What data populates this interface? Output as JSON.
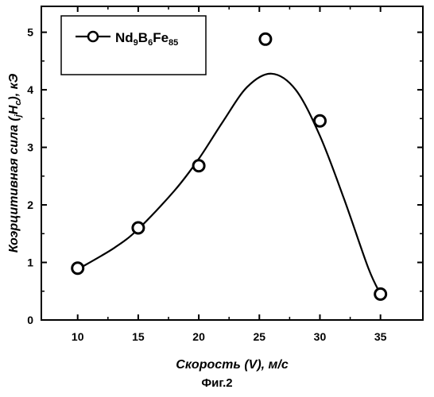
{
  "chart_data": {
    "type": "scatter",
    "title": "",
    "xlabel": "Скорость (V), м/с",
    "ylabel_parts": {
      "before": "Коэрцитивная сила (",
      "sub_j": "j",
      "H": "H",
      "sub_c": "c",
      "after": "), кЭ"
    },
    "xlim": [
      7,
      38.5
    ],
    "ylim": [
      0,
      5.45
    ],
    "xticks": [
      10,
      15,
      20,
      25,
      30,
      35
    ],
    "yticks": [
      0,
      1,
      2,
      3,
      4,
      5
    ],
    "grid": false,
    "legend_position": "top-left",
    "legend": {
      "base1": "Nd",
      "sub1": "9",
      "base2": "B",
      "sub2": "6",
      "base3": "Fe",
      "sub3": "85"
    },
    "series": [
      {
        "name": "Nd9B6Fe85",
        "marker": "open-circle",
        "points": [
          {
            "x": 10,
            "y": 0.9
          },
          {
            "x": 15,
            "y": 1.6
          },
          {
            "x": 20,
            "y": 2.68
          },
          {
            "x": 25.5,
            "y": 4.88
          },
          {
            "x": 30,
            "y": 3.46
          },
          {
            "x": 35,
            "y": 0.45
          }
        ],
        "fit_curve": [
          {
            "x": 10,
            "y": 0.88
          },
          {
            "x": 13,
            "y": 1.25
          },
          {
            "x": 15,
            "y": 1.58
          },
          {
            "x": 18,
            "y": 2.25
          },
          {
            "x": 20,
            "y": 2.8
          },
          {
            "x": 22,
            "y": 3.45
          },
          {
            "x": 24,
            "y": 4.05
          },
          {
            "x": 26,
            "y": 4.28
          },
          {
            "x": 28,
            "y": 4.0
          },
          {
            "x": 30,
            "y": 3.2
          },
          {
            "x": 32,
            "y": 2.1
          },
          {
            "x": 34,
            "y": 0.9
          },
          {
            "x": 35,
            "y": 0.45
          }
        ]
      }
    ],
    "colors": {
      "line": "#000000",
      "marker_fill": "#ffffff"
    }
  },
  "caption": "Фиг.2"
}
